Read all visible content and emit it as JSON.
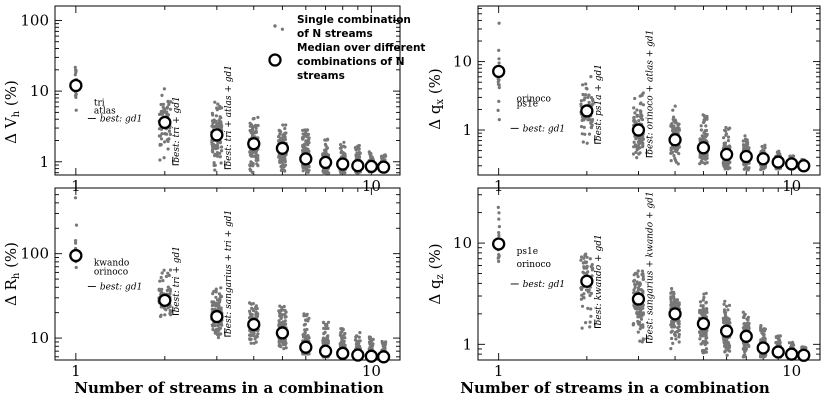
{
  "figure": {
    "xlabel": "Number of streams in a combination",
    "legend": {
      "single_label_line1": "Single combination",
      "single_label_line2": "of N streams",
      "median_label_line1": "Median over different",
      "median_label_line2": "combinations of N",
      "median_label_line3": "streams"
    }
  },
  "chart_data": [
    {
      "type": "scatter",
      "ylabel": "Δ V_h (%)",
      "ylabel_main": "Δ V",
      "ylabel_sub": "h",
      "ylabel_tail": " (%)",
      "x_scale": "log",
      "y_scale": "log",
      "xlim": [
        0.85,
        12.5
      ],
      "ylim": [
        0.65,
        160
      ],
      "x_ticks": [
        1,
        10
      ],
      "x_tick_labels": [
        "1",
        "10"
      ],
      "y_ticks": [
        1,
        10,
        100
      ],
      "y_tick_labels": [
        "1",
        "10",
        "100"
      ],
      "spread_low": [
        3.8,
        0.85,
        0.75,
        0.7,
        0.7,
        0.7,
        0.68,
        0.7,
        0.7,
        0.72,
        0.75
      ],
      "spread_high": [
        28,
        11,
        7,
        4.5,
        3.6,
        3.0,
        2.4,
        1.9,
        1.7,
        1.4,
        1.25
      ],
      "outliers": [
        [
          5,
          75
        ]
      ],
      "median": [
        12,
        3.6,
        2.4,
        1.8,
        1.55,
        1.1,
        0.98,
        0.93,
        0.88,
        0.86,
        0.84
      ],
      "annotations": {
        "a1": "tri",
        "a2": "atlas",
        "best1": "best: gd1",
        "best2": "best: tri + gd1",
        "best3": "best: tri + atlas + gd1"
      },
      "legend_shown": true
    },
    {
      "type": "scatter",
      "ylabel": "Δ q_x (%)",
      "ylabel_main": "Δ q",
      "ylabel_sub": "x",
      "ylabel_tail": " (%)",
      "x_scale": "log",
      "y_scale": "log",
      "xlim": [
        0.85,
        12.5
      ],
      "ylim": [
        0.22,
        65
      ],
      "x_ticks": [
        1,
        10
      ],
      "x_tick_labels": [
        "1",
        "10"
      ],
      "y_ticks": [
        1,
        10
      ],
      "y_tick_labels": [
        "1",
        "10"
      ],
      "spread_low": [
        0.85,
        0.6,
        0.38,
        0.32,
        0.3,
        0.27,
        0.26,
        0.26,
        0.27,
        0.27,
        0.28
      ],
      "spread_high": [
        45,
        6.5,
        3.6,
        2.3,
        1.7,
        1.1,
        0.85,
        0.6,
        0.5,
        0.42,
        0.38
      ],
      "outliers": [],
      "median": [
        7.2,
        1.9,
        1.0,
        0.72,
        0.55,
        0.44,
        0.41,
        0.38,
        0.34,
        0.32,
        0.3
      ],
      "annotations": {
        "a1": "orinoco",
        "a2": "ps1e",
        "best1": "best: gd1",
        "best2": "best: ps1a + gd1",
        "best3": "best: orinoco + atlas + gd1"
      },
      "legend_shown": false
    },
    {
      "type": "scatter",
      "ylabel": "Δ R_h (%)",
      "ylabel_main": "Δ R",
      "ylabel_sub": "h",
      "ylabel_tail": " (%)",
      "x_scale": "log",
      "y_scale": "log",
      "xlim": [
        0.85,
        12.5
      ],
      "ylim": [
        5.5,
        600
      ],
      "x_ticks": [
        1,
        10
      ],
      "x_tick_labels": [
        "1",
        "10"
      ],
      "y_ticks": [
        10,
        100
      ],
      "y_tick_labels": [
        "10",
        "100"
      ],
      "spread_low": [
        55,
        18,
        10,
        8.5,
        7.5,
        6.5,
        6.0,
        5.9,
        5.9,
        5.9,
        6.0
      ],
      "spread_high": [
        500,
        65,
        40,
        27,
        24,
        20,
        16,
        13,
        12,
        10.5,
        9.5
      ],
      "outliers": [],
      "median": [
        95,
        28,
        18,
        14.5,
        11.5,
        7.8,
        7.0,
        6.6,
        6.3,
        6.1,
        6.0
      ],
      "annotations": {
        "a1": "kwando",
        "a2": "orinoco",
        "best1": "best: gd1",
        "best2": "best: tri + gd1",
        "best3": "best: sangarius + tri + gd1"
      },
      "legend_shown": false
    },
    {
      "type": "scatter",
      "ylabel": "Δ q_z (%)",
      "ylabel_main": "Δ q",
      "ylabel_sub": "z",
      "ylabel_tail": " (%)",
      "x_scale": "log",
      "y_scale": "log",
      "xlim": [
        0.85,
        12.5
      ],
      "ylim": [
        0.7,
        35
      ],
      "x_ticks": [
        1,
        10
      ],
      "x_tick_labels": [
        "1",
        "10"
      ],
      "y_ticks": [
        1,
        10
      ],
      "y_tick_labels": [
        "1",
        "10"
      ],
      "spread_low": [
        3.5,
        1.4,
        1.0,
        0.85,
        0.8,
        0.78,
        0.75,
        0.75,
        0.75,
        0.76,
        0.77
      ],
      "spread_high": [
        25,
        8.0,
        5.5,
        4.0,
        3.3,
        2.7,
        2.1,
        1.6,
        1.25,
        1.05,
        0.95
      ],
      "outliers": [],
      "median": [
        9.8,
        4.2,
        2.8,
        2.0,
        1.6,
        1.35,
        1.2,
        0.92,
        0.84,
        0.8,
        0.78
      ],
      "annotations": {
        "a1": "ps1e",
        "a2": "orinoco",
        "best1": "best: gd1",
        "best2": "best: kwando + gd1",
        "best3": "best: sangarius + kwando + gd1"
      },
      "legend_shown": false
    }
  ]
}
